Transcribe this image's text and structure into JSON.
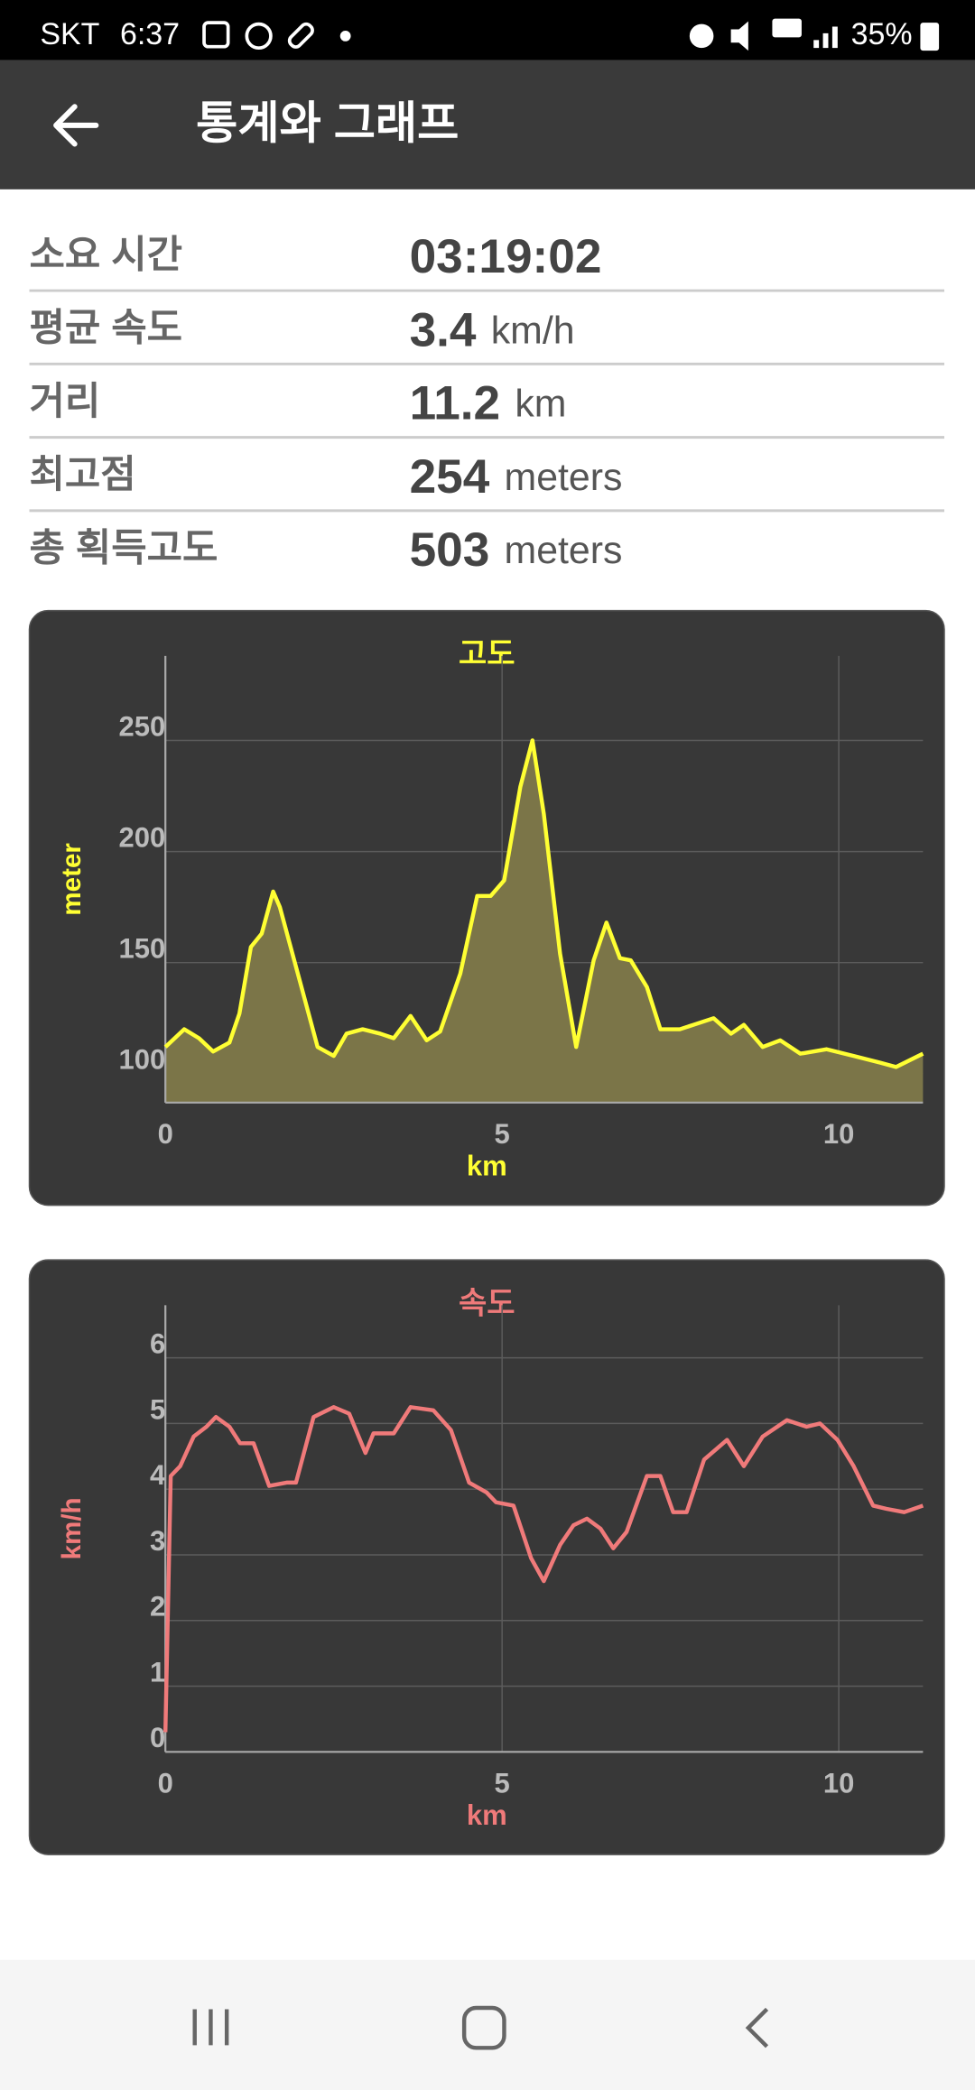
{
  "status_bar": {
    "carrier": "SKT",
    "time": "6:37",
    "battery": "35%"
  },
  "app_bar": {
    "title": "통계와 그래프"
  },
  "stats": [
    {
      "label": "소요 시간",
      "value": "03:19:02"
    },
    {
      "label": "평균 속도",
      "value": "3.4",
      "unit": "km/h"
    },
    {
      "label": "거리",
      "value": "11.2",
      "unit": "km"
    },
    {
      "label": "최고점",
      "value": "254",
      "unit": "meters"
    },
    {
      "label": "총 획득고도",
      "value": "503",
      "unit": "meters"
    }
  ],
  "chart_data": [
    {
      "type": "line",
      "title": "고도",
      "xlabel": "km",
      "ylabel": "meter",
      "color": "#ffff33",
      "area": true,
      "fill_color": "#7b7548",
      "grid": true,
      "x": [
        0,
        0.28,
        0.5,
        0.71,
        0.95,
        1.1,
        1.27,
        1.43,
        1.6,
        1.7,
        1.86,
        2.02,
        2.26,
        2.5,
        2.69,
        2.93,
        3.19,
        3.39,
        3.64,
        3.88,
        4.08,
        4.38,
        4.63,
        4.83,
        5.03,
        5.27,
        5.45,
        5.62,
        5.86,
        6.1,
        6.36,
        6.55,
        6.75,
        6.91,
        7.15,
        7.35,
        7.64,
        7.84,
        8.14,
        8.4,
        8.59,
        8.87,
        9.13,
        9.43,
        9.82,
        10.22,
        10.61,
        10.85,
        11.25
      ],
      "values": [
        112,
        120,
        116,
        110,
        114,
        127,
        157,
        163,
        182,
        175,
        157,
        139,
        112,
        108,
        118,
        120,
        118,
        116,
        126,
        115,
        119,
        145,
        180,
        180,
        187,
        229,
        250,
        217,
        154,
        112,
        151,
        168,
        152,
        151,
        139,
        120,
        120,
        122,
        125,
        118,
        122,
        112,
        115,
        109,
        111,
        108,
        105,
        103,
        109
      ],
      "xlim": [
        0,
        11.25
      ],
      "ylim": [
        87,
        288
      ],
      "xticks": [
        0,
        5,
        10
      ],
      "yticks": [
        100,
        150,
        200,
        250
      ]
    },
    {
      "type": "line",
      "title": "속도",
      "xlabel": "km",
      "ylabel": "km/h",
      "color": "#f07a7a",
      "area": false,
      "grid": true,
      "x": [
        0,
        0.08,
        0.22,
        0.42,
        0.61,
        0.75,
        0.95,
        1.11,
        1.31,
        1.54,
        1.8,
        1.94,
        2.2,
        2.5,
        2.73,
        2.97,
        3.09,
        3.39,
        3.64,
        3.98,
        4.24,
        4.51,
        4.77,
        4.91,
        5.17,
        5.43,
        5.62,
        5.86,
        6.06,
        6.26,
        6.46,
        6.65,
        6.85,
        7.15,
        7.35,
        7.54,
        7.74,
        8.0,
        8.34,
        8.59,
        8.87,
        9.23,
        9.52,
        9.72,
        9.98,
        10.22,
        10.51,
        10.71,
        10.97,
        11.25
      ],
      "values": [
        0.3,
        4.2,
        4.35,
        4.8,
        4.95,
        5.1,
        4.95,
        4.7,
        4.7,
        4.05,
        4.1,
        4.1,
        5.1,
        5.25,
        5.15,
        4.55,
        4.85,
        4.85,
        5.25,
        5.2,
        4.9,
        4.1,
        3.95,
        3.8,
        3.75,
        2.95,
        2.6,
        3.15,
        3.45,
        3.55,
        3.4,
        3.1,
        3.35,
        4.2,
        4.2,
        3.65,
        3.65,
        4.45,
        4.75,
        4.35,
        4.8,
        5.05,
        4.95,
        5.0,
        4.75,
        4.35,
        3.75,
        3.7,
        3.65,
        3.75
      ],
      "xlim": [
        0,
        11.25
      ],
      "ylim": [
        0,
        6.8
      ],
      "xticks": [
        0,
        5,
        10
      ],
      "yticks": [
        0,
        1,
        2,
        3,
        4,
        5,
        6
      ]
    }
  ]
}
